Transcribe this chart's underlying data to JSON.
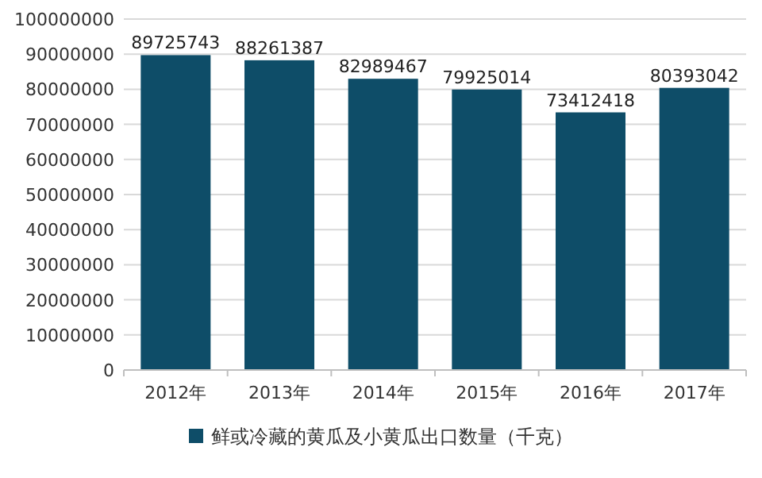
{
  "chart_data": {
    "type": "bar",
    "categories": [
      "2012年",
      "2013年",
      "2014年",
      "2015年",
      "2016年",
      "2017年"
    ],
    "series": [
      {
        "name": "鲜或冷藏的黄瓜及小黄瓜出口数量（千克）",
        "color": "#0e4d68",
        "values": [
          89725743,
          88261387,
          82989467,
          79925014,
          73412418,
          80393042
        ]
      }
    ],
    "ylim": [
      0,
      100000000
    ],
    "yticks": [
      0,
      10000000,
      20000000,
      30000000,
      40000000,
      50000000,
      60000000,
      70000000,
      80000000,
      90000000,
      100000000
    ],
    "grid": "y",
    "legend": "bottom",
    "data_labels": true
  }
}
